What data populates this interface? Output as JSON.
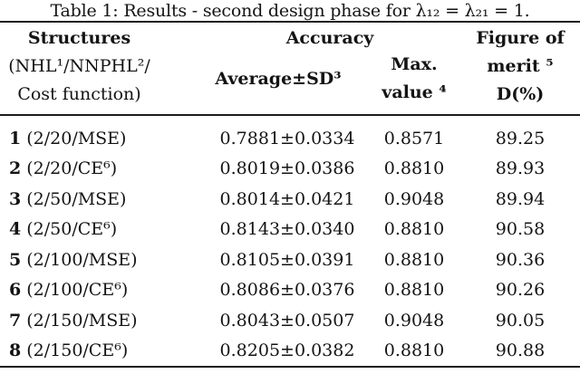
{
  "caption": "Table 1: Results - second design phase for λ₁₂ = λ₂₁ = 1.",
  "header": {
    "structures": {
      "line1": "Structures",
      "line2": "(NHL¹/NNPHL²/",
      "line3": "Cost function)"
    },
    "accuracy_group": "Accuracy",
    "average_sd": "Average±SD³",
    "max": {
      "line1": "Max.",
      "line2": "value ⁴"
    },
    "figure_of_merit": {
      "line1": "Figure of",
      "line2": "merit ⁵",
      "line3": "D(%)"
    }
  },
  "rows": [
    {
      "num": "1",
      "structure": "(2/20/MSE)",
      "average_sd": "0.7881±0.0334",
      "max_value": "0.8571",
      "figure_of_merit": "89.25"
    },
    {
      "num": "2",
      "structure": "(2/20/CE⁶)",
      "average_sd": "0.8019±0.0386",
      "max_value": "0.8810",
      "figure_of_merit": "89.93"
    },
    {
      "num": "3",
      "structure": "(2/50/MSE)",
      "average_sd": "0.8014±0.0421",
      "max_value": "0.9048",
      "figure_of_merit": "89.94"
    },
    {
      "num": "4",
      "structure": "(2/50/CE⁶)",
      "average_sd": "0.8143±0.0340",
      "max_value": "0.8810",
      "figure_of_merit": "90.58"
    },
    {
      "num": "5",
      "structure": "(2/100/MSE)",
      "average_sd": "0.8105±0.0391",
      "max_value": "0.8810",
      "figure_of_merit": "90.36"
    },
    {
      "num": "6",
      "structure": "(2/100/CE⁶)",
      "average_sd": "0.8086±0.0376",
      "max_value": "0.8810",
      "figure_of_merit": "90.26"
    },
    {
      "num": "7",
      "structure": "(2/150/MSE)",
      "average_sd": "0.8043±0.0507",
      "max_value": "0.9048",
      "figure_of_merit": "90.05"
    },
    {
      "num": "8",
      "structure": "(2/150/CE⁶)",
      "average_sd": "0.8205±0.0382",
      "max_value": "0.8810",
      "figure_of_merit": "90.88"
    }
  ],
  "colors": {
    "background": "#ffffff",
    "text": "#141414",
    "rule": "#1c1c1c"
  }
}
